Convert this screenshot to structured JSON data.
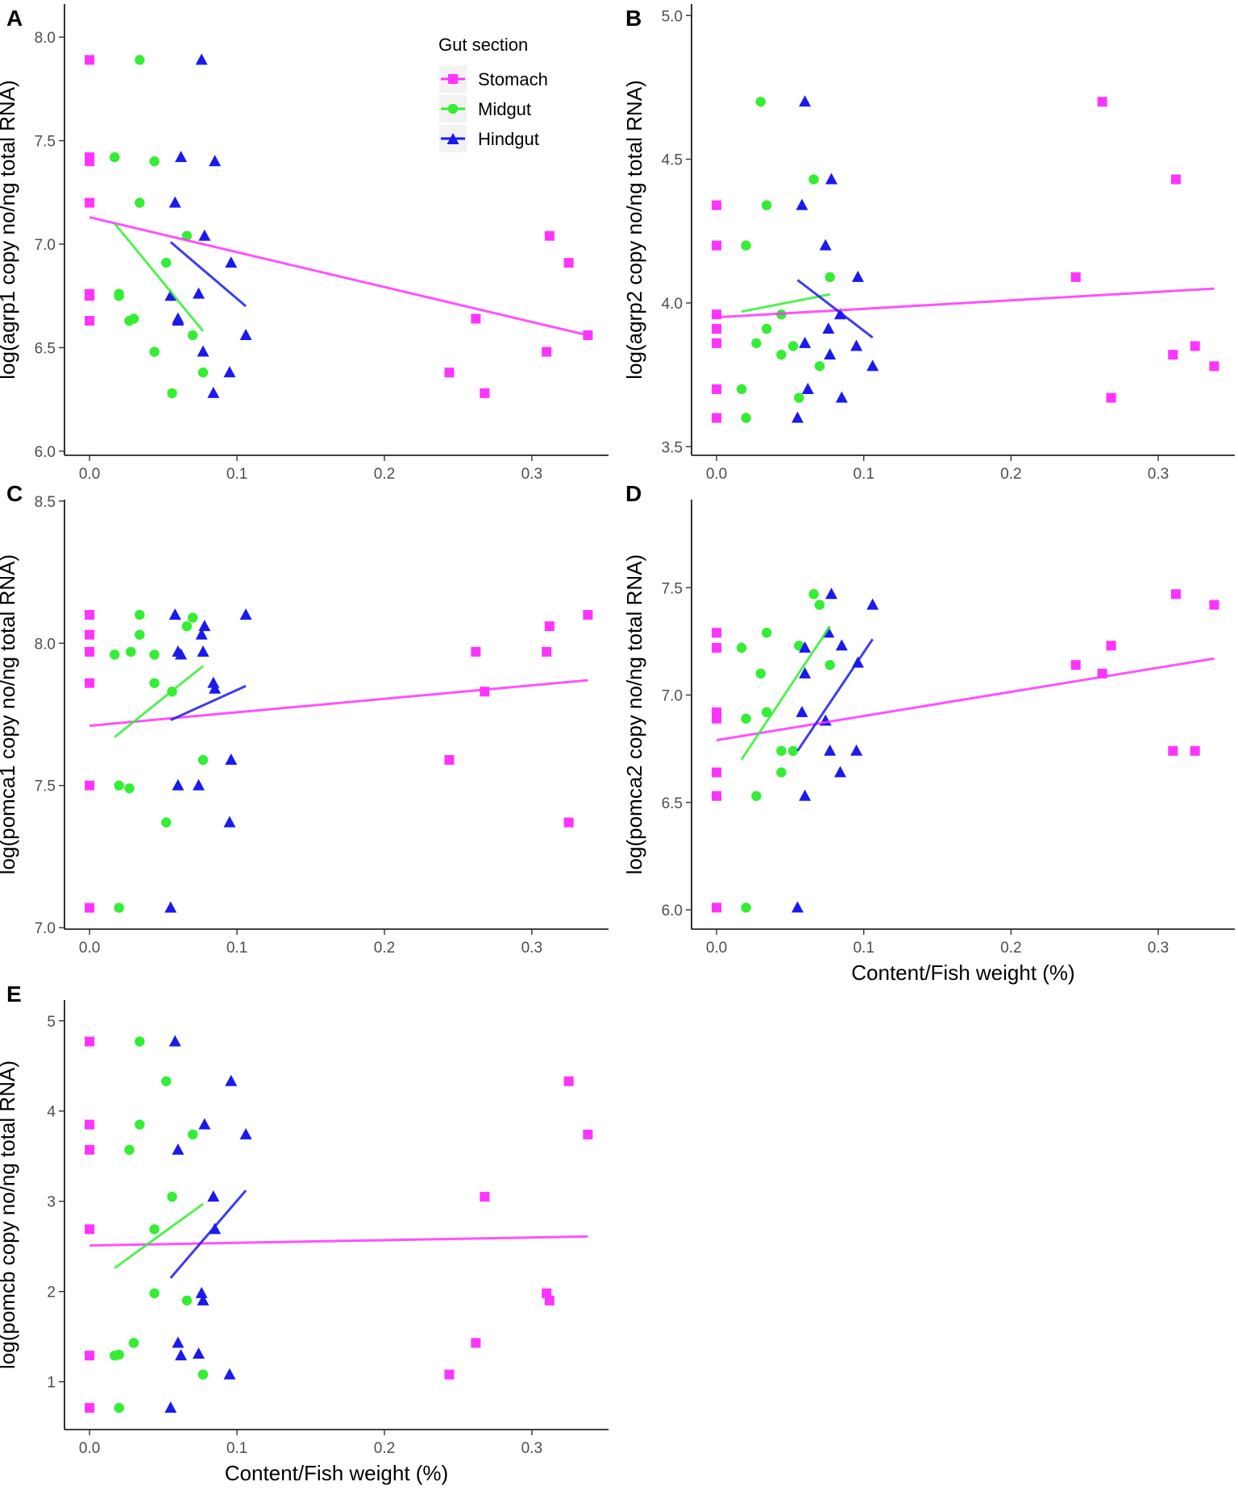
{
  "chart_data": [
    {
      "panel": "A",
      "type": "scatter",
      "xlabel": "",
      "ylabel": "log(agrp1 copy no/ng total RNA)",
      "xlim": [
        -0.017,
        0.352
      ],
      "ylim": [
        5.98,
        8.16
      ],
      "xticks": [
        "0.0",
        "0.1",
        "0.2",
        "0.3"
      ],
      "xtick_values": [
        0,
        0.1,
        0.2,
        0.3
      ],
      "yticks": [
        "6.0",
        "6.5",
        "7.0",
        "7.5",
        "8.0"
      ],
      "ytick_values": [
        6.0,
        6.5,
        7.0,
        7.5,
        8.0
      ],
      "series": [
        {
          "name": "Stomach",
          "color": "#ff33ff",
          "marker": "square",
          "x": [
            0,
            0,
            0,
            0,
            0,
            0,
            0,
            0.244,
            0.262,
            0.268,
            0.31,
            0.312,
            0.325,
            0.338
          ],
          "y": [
            7.89,
            7.42,
            7.4,
            7.2,
            6.76,
            6.75,
            6.63,
            6.38,
            6.64,
            6.28,
            6.48,
            7.04,
            6.91,
            6.56
          ],
          "fit": [
            [
              0,
              7.13
            ],
            [
              0.338,
              6.56
            ]
          ]
        },
        {
          "name": "Midgut",
          "color": "#33ee33",
          "marker": "circle",
          "x": [
            0.017,
            0.02,
            0.02,
            0.027,
            0.03,
            0.034,
            0.034,
            0.044,
            0.044,
            0.052,
            0.056,
            0.066,
            0.07,
            0.077
          ],
          "y": [
            7.42,
            6.76,
            6.75,
            6.63,
            6.64,
            7.89,
            7.2,
            7.4,
            6.48,
            6.91,
            6.28,
            7.04,
            6.56,
            6.38
          ],
          "fit": [
            [
              0.017,
              7.1
            ],
            [
              0.077,
              6.58
            ]
          ]
        },
        {
          "name": "Hindgut",
          "color": "#1a1aee",
          "marker": "triangle",
          "x": [
            0.055,
            0.058,
            0.06,
            0.06,
            0.062,
            0.074,
            0.076,
            0.077,
            0.078,
            0.084,
            0.085,
            0.095,
            0.096,
            0.106
          ],
          "y": [
            6.75,
            7.2,
            6.64,
            6.63,
            7.42,
            6.76,
            7.89,
            6.48,
            7.04,
            6.28,
            7.4,
            6.38,
            6.91,
            6.56
          ],
          "fit": [
            [
              0.055,
              7.01
            ],
            [
              0.106,
              6.7
            ]
          ]
        }
      ]
    },
    {
      "panel": "B",
      "type": "scatter",
      "xlabel": "",
      "ylabel": "log(agrp2 copy no/ng total RNA)",
      "xlim": [
        -0.017,
        0.352
      ],
      "ylim": [
        3.47,
        5.04
      ],
      "xticks": [
        "0.0",
        "0.1",
        "0.2",
        "0.3"
      ],
      "xtick_values": [
        0,
        0.1,
        0.2,
        0.3
      ],
      "yticks": [
        "3.5",
        "4.0",
        "4.5",
        "5.0"
      ],
      "ytick_values": [
        3.5,
        4.0,
        4.5,
        5.0
      ],
      "series": [
        {
          "name": "Stomach",
          "color": "#ff33ff",
          "marker": "square",
          "x": [
            0,
            0,
            0,
            0,
            0,
            0,
            0,
            0.244,
            0.262,
            0.268,
            0.31,
            0.312,
            0.325,
            0.338
          ],
          "y": [
            4.34,
            4.2,
            3.96,
            3.91,
            3.86,
            3.7,
            3.6,
            4.09,
            4.7,
            3.67,
            3.82,
            4.43,
            3.85,
            3.78
          ],
          "fit": [
            [
              0,
              3.95
            ],
            [
              0.338,
              4.05
            ]
          ]
        },
        {
          "name": "Midgut",
          "color": "#33ee33",
          "marker": "circle",
          "x": [
            0.017,
            0.02,
            0.02,
            0.027,
            0.03,
            0.034,
            0.034,
            0.044,
            0.044,
            0.052,
            0.056,
            0.066,
            0.07,
            0.077
          ],
          "y": [
            3.7,
            4.2,
            3.6,
            3.86,
            4.7,
            3.91,
            4.34,
            3.96,
            3.82,
            3.85,
            3.67,
            4.43,
            3.78,
            4.09
          ],
          "fit": [
            [
              0.017,
              3.97
            ],
            [
              0.077,
              4.03
            ]
          ]
        },
        {
          "name": "Hindgut",
          "color": "#1a1aee",
          "marker": "triangle",
          "x": [
            0.055,
            0.058,
            0.06,
            0.06,
            0.062,
            0.074,
            0.076,
            0.077,
            0.078,
            0.084,
            0.085,
            0.095,
            0.096,
            0.106
          ],
          "y": [
            3.6,
            4.34,
            3.86,
            4.7,
            3.7,
            4.2,
            3.91,
            3.82,
            4.43,
            3.96,
            3.67,
            3.85,
            4.09,
            3.78
          ],
          "fit": [
            [
              0.055,
              4.08
            ],
            [
              0.106,
              3.88
            ]
          ]
        }
      ]
    },
    {
      "panel": "C",
      "type": "scatter",
      "xlabel": "",
      "ylabel": "log(pomca1 copy no/ng total RNA)",
      "xlim": [
        -0.017,
        0.352
      ],
      "ylim": [
        6.995,
        8.505
      ],
      "xticks": [
        "0.0",
        "0.1",
        "0.2",
        "0.3"
      ],
      "xtick_values": [
        0,
        0.1,
        0.2,
        0.3
      ],
      "yticks": [
        "7.0",
        "7.5",
        "8.0",
        "8.5"
      ],
      "ytick_values": [
        7.0,
        7.5,
        8.0,
        8.5
      ],
      "series": [
        {
          "name": "Stomach",
          "color": "#ff33ff",
          "marker": "square",
          "x": [
            0,
            0,
            0,
            0,
            0,
            0,
            0.244,
            0.262,
            0.268,
            0.31,
            0.312,
            0.325,
            0.338
          ],
          "y": [
            8.1,
            8.03,
            7.97,
            7.86,
            7.5,
            7.07,
            7.59,
            7.97,
            7.83,
            7.97,
            8.06,
            7.37,
            8.1
          ],
          "fit": [
            [
              0,
              7.71
            ],
            [
              0.338,
              7.87
            ]
          ]
        },
        {
          "name": "Midgut",
          "color": "#33ee33",
          "marker": "circle",
          "x": [
            0.017,
            0.02,
            0.02,
            0.027,
            0.028,
            0.034,
            0.034,
            0.044,
            0.044,
            0.052,
            0.056,
            0.066,
            0.07,
            0.077
          ],
          "y": [
            7.96,
            7.5,
            7.07,
            7.49,
            7.97,
            8.03,
            8.1,
            7.86,
            7.96,
            7.37,
            7.83,
            8.06,
            8.09,
            7.59
          ],
          "fit": [
            [
              0.017,
              7.67
            ],
            [
              0.077,
              7.92
            ]
          ]
        },
        {
          "name": "Hindgut",
          "color": "#1a1aee",
          "marker": "triangle",
          "x": [
            0.055,
            0.058,
            0.06,
            0.06,
            0.062,
            0.074,
            0.076,
            0.077,
            0.078,
            0.084,
            0.085,
            0.095,
            0.096,
            0.106
          ],
          "y": [
            7.07,
            8.1,
            7.5,
            7.97,
            7.96,
            7.5,
            8.03,
            7.97,
            8.06,
            7.86,
            7.84,
            7.37,
            7.59,
            8.1
          ],
          "fit": [
            [
              0.055,
              7.73
            ],
            [
              0.106,
              7.85
            ]
          ]
        }
      ]
    },
    {
      "panel": "D",
      "type": "scatter",
      "xlabel": "Content/Fish weight (%)",
      "ylabel": "log(pomca2 copy no/ng total RNA)",
      "xlim": [
        -0.017,
        0.352
      ],
      "ylim": [
        5.91,
        7.91
      ],
      "xticks": [
        "0.0",
        "0.1",
        "0.2",
        "0.3"
      ],
      "xtick_values": [
        0,
        0.1,
        0.2,
        0.3
      ],
      "yticks": [
        "6.0",
        "6.5",
        "7.0",
        "7.5"
      ],
      "ytick_values": [
        6.0,
        6.5,
        7.0,
        7.5
      ],
      "series": [
        {
          "name": "Stomach",
          "color": "#ff33ff",
          "marker": "square",
          "x": [
            0,
            0,
            0,
            0,
            0,
            0,
            0,
            0.244,
            0.262,
            0.268,
            0.31,
            0.312,
            0.325,
            0.338
          ],
          "y": [
            7.29,
            7.22,
            6.92,
            6.89,
            6.64,
            6.53,
            6.01,
            7.14,
            7.1,
            7.23,
            6.74,
            7.47,
            6.74,
            7.42
          ],
          "fit": [
            [
              0,
              6.79
            ],
            [
              0.338,
              7.17
            ]
          ]
        },
        {
          "name": "Midgut",
          "color": "#33ee33",
          "marker": "circle",
          "x": [
            0.017,
            0.02,
            0.02,
            0.027,
            0.03,
            0.034,
            0.034,
            0.044,
            0.044,
            0.052,
            0.056,
            0.066,
            0.07,
            0.077
          ],
          "y": [
            7.22,
            6.89,
            6.01,
            6.53,
            7.1,
            7.29,
            6.92,
            6.74,
            6.64,
            6.74,
            7.23,
            7.47,
            7.42,
            7.14
          ],
          "fit": [
            [
              0.017,
              6.7
            ],
            [
              0.077,
              7.32
            ]
          ]
        },
        {
          "name": "Hindgut",
          "color": "#1a1aee",
          "marker": "triangle",
          "x": [
            0.055,
            0.058,
            0.06,
            0.06,
            0.06,
            0.074,
            0.076,
            0.077,
            0.078,
            0.084,
            0.085,
            0.095,
            0.096,
            0.106
          ],
          "y": [
            6.01,
            6.92,
            6.53,
            7.1,
            7.22,
            6.88,
            7.29,
            6.74,
            7.47,
            6.64,
            7.23,
            6.74,
            7.15,
            7.42
          ],
          "fit": [
            [
              0.055,
              6.74
            ],
            [
              0.106,
              7.26
            ]
          ]
        }
      ]
    },
    {
      "panel": "E",
      "type": "scatter",
      "xlabel": "Content/Fish weight (%)",
      "ylabel": "log(pomcb copy no/ng total RNA)",
      "xlim": [
        -0.017,
        0.352
      ],
      "ylim": [
        0.47,
        5.23
      ],
      "xticks": [
        "0.0",
        "0.1",
        "0.2",
        "0.3"
      ],
      "xtick_values": [
        0,
        0.1,
        0.2,
        0.3
      ],
      "yticks": [
        "1",
        "2",
        "3",
        "4",
        "5"
      ],
      "ytick_values": [
        1,
        2,
        3,
        4,
        5
      ],
      "series": [
        {
          "name": "Stomach",
          "color": "#ff33ff",
          "marker": "square",
          "x": [
            0,
            0,
            0,
            0,
            0,
            0,
            0.244,
            0.262,
            0.268,
            0.31,
            0.312,
            0.325,
            0.338
          ],
          "y": [
            4.77,
            3.85,
            3.57,
            2.69,
            1.29,
            0.71,
            1.08,
            1.43,
            3.05,
            1.98,
            1.9,
            4.33,
            3.74
          ],
          "fit": [
            [
              0,
              2.51
            ],
            [
              0.338,
              2.61
            ]
          ]
        },
        {
          "name": "Midgut",
          "color": "#33ee33",
          "marker": "circle",
          "x": [
            0.017,
            0.02,
            0.02,
            0.027,
            0.03,
            0.034,
            0.034,
            0.044,
            0.044,
            0.052,
            0.056,
            0.066,
            0.07,
            0.077
          ],
          "y": [
            1.29,
            1.3,
            0.71,
            3.57,
            1.43,
            4.77,
            3.85,
            2.69,
            1.98,
            4.33,
            3.05,
            1.9,
            3.74,
            1.08
          ],
          "fit": [
            [
              0.017,
              2.26
            ],
            [
              0.077,
              2.97
            ]
          ]
        },
        {
          "name": "Hindgut",
          "color": "#1a1aee",
          "marker": "triangle",
          "x": [
            0.055,
            0.058,
            0.06,
            0.06,
            0.062,
            0.074,
            0.076,
            0.077,
            0.078,
            0.084,
            0.085,
            0.095,
            0.096,
            0.106
          ],
          "y": [
            0.71,
            4.77,
            3.57,
            1.43,
            1.29,
            1.31,
            1.98,
            1.9,
            3.85,
            3.05,
            2.69,
            1.08,
            4.33,
            3.74
          ],
          "fit": [
            [
              0.055,
              2.15
            ],
            [
              0.106,
              3.12
            ]
          ]
        }
      ]
    }
  ],
  "legend": {
    "title": "Gut section",
    "entries": [
      {
        "label": "Stomach",
        "color": "#ff33ff",
        "marker": "square"
      },
      {
        "label": "Midgut",
        "color": "#33ee33",
        "marker": "circle"
      },
      {
        "label": "Hindgut",
        "color": "#1a1aee",
        "marker": "triangle"
      }
    ]
  }
}
